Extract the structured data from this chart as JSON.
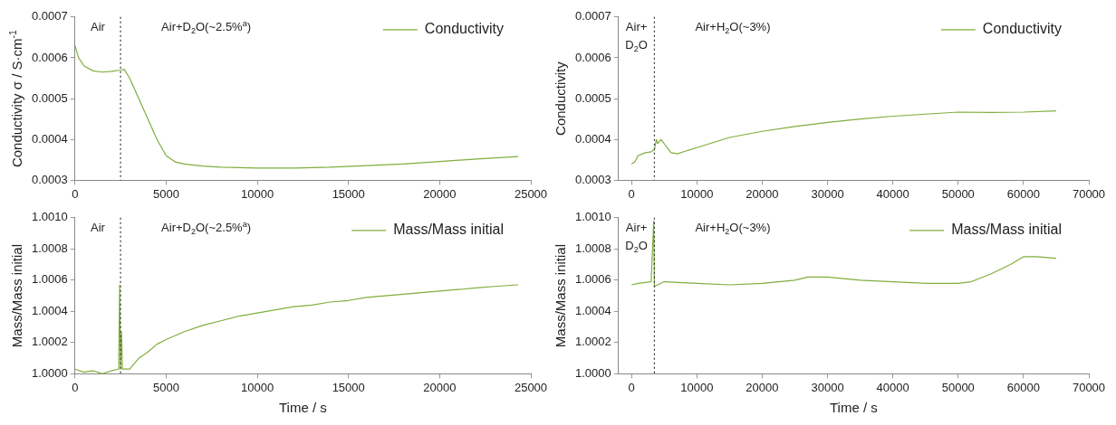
{
  "chart_data": [
    {
      "type": "line",
      "ylabel": "Conductivity σ / S·cm$^{-1}$",
      "xlim": [
        0,
        25000
      ],
      "xticks": [
        0,
        5000,
        10000,
        15000,
        20000,
        25000
      ],
      "ylim": [
        0.0003,
        0.0007
      ],
      "yticks": [
        0.0003,
        0.0004,
        0.0005,
        0.0006,
        0.0007
      ],
      "grid": false,
      "legend": "top right",
      "marker": "none",
      "annotations": [
        "Air",
        "Air+D$_{2}$O(~2.5%$^{a}$)"
      ],
      "ref_lines": [
        {
          "axis": "x",
          "value": 2500,
          "color": "#333333",
          "line_style": "dotted"
        }
      ],
      "series": [
        {
          "name": "Conductivity",
          "color": "#7fae3c",
          "x": [
            0,
            200,
            500,
            1000,
            1500,
            2000,
            2500,
            2700,
            3000,
            3500,
            4000,
            4500,
            5000,
            5500,
            6000,
            7000,
            8000,
            10000,
            12000,
            14000,
            16000,
            18000,
            20000,
            22000,
            24300
          ],
          "values": [
            0.00063,
            0.0006,
            0.00058,
            0.000568,
            0.000565,
            0.000567,
            0.00057,
            0.000572,
            0.00055,
            0.0005,
            0.00045,
            0.0004,
            0.00036,
            0.000345,
            0.00034,
            0.000335,
            0.000332,
            0.00033,
            0.00033,
            0.000332,
            0.000336,
            0.00034,
            0.000346,
            0.000352,
            0.000358
          ]
        }
      ]
    },
    {
      "type": "line",
      "xlabel": "Time / s",
      "ylabel": "Mass/Mass initial",
      "xlim": [
        0,
        25000
      ],
      "xticks": [
        0,
        5000,
        10000,
        15000,
        20000,
        25000
      ],
      "ylim": [
        1,
        1.001
      ],
      "yticks": [
        {
          "value": 1,
          "label": "1.0000"
        },
        {
          "value": 1.0002,
          "label": "1.0002"
        },
        {
          "value": 1.0004,
          "label": "1.0004"
        },
        {
          "value": 1.0006,
          "label": "1.0006"
        },
        {
          "value": 1.0008,
          "label": "1.0008"
        },
        {
          "value": 1.001,
          "label": "1.0010"
        }
      ],
      "grid": false,
      "legend": "top right",
      "marker": "none",
      "annotations": [
        "Air",
        "Air+D$_{2}$O(~2.5%$^{a}$)"
      ],
      "ref_lines": [
        {
          "axis": "x",
          "value": 2500,
          "color": "#333333",
          "line_style": "dotted"
        }
      ],
      "series": [
        {
          "name": "Mass/Mass initial",
          "color": "#7fae3c",
          "x": [
            0,
            500,
            1000,
            1500,
            2000,
            2400,
            2450,
            2500,
            2550,
            2600,
            3000,
            3500,
            4000,
            4500,
            5000,
            6000,
            7000,
            8000,
            9000,
            10000,
            11000,
            12000,
            13000,
            14000,
            15000,
            16000,
            17000,
            18000,
            19000,
            20000,
            21000,
            22000,
            23000,
            24300
          ],
          "values": [
            1.00003,
            1.00001,
            1.00002,
            1,
            1.00002,
            1.00003,
            1.00057,
            1.00003,
            1.00027,
            1.00003,
            1.00003,
            1.0001,
            1.00014,
            1.00019,
            1.00022,
            1.00027,
            1.00031,
            1.00034,
            1.00037,
            1.00039,
            1.00041,
            1.00043,
            1.00044,
            1.00046,
            1.00047,
            1.00049,
            1.0005,
            1.00051,
            1.00052,
            1.00053,
            1.00054,
            1.00055,
            1.00056,
            1.00057
          ]
        }
      ]
    },
    {
      "type": "line",
      "ylabel": "Conductivity",
      "xlim": [
        -2000,
        70000
      ],
      "xticks": [
        0,
        10000,
        20000,
        30000,
        40000,
        50000,
        60000,
        70000
      ],
      "ylim": [
        0.0003,
        0.0007
      ],
      "yticks": [
        0.0003,
        0.0004,
        0.0005,
        0.0006,
        0.0007
      ],
      "grid": false,
      "legend": "top right",
      "marker": "none",
      "annotations": [
        "Air+\nD$_{2}$O",
        "Air+H$_{2}$O(~3%)"
      ],
      "ref_lines": [
        {
          "axis": "x",
          "value": 3500,
          "color": "#333333",
          "line_style": "dotted"
        }
      ],
      "series": [
        {
          "name": "Conductivity",
          "color": "#7fae3c",
          "x": [
            0,
            500,
            1000,
            2000,
            3000,
            3500,
            3800,
            4000,
            4500,
            5000,
            6000,
            7000,
            8000,
            10000,
            12000,
            15000,
            20000,
            25000,
            30000,
            35000,
            40000,
            45000,
            50000,
            55000,
            60000,
            65000
          ],
          "values": [
            0.00034,
            0.000345,
            0.00036,
            0.000367,
            0.00037,
            0.000375,
            0.0004,
            0.00039,
            0.0004,
            0.00039,
            0.000368,
            0.000365,
            0.00037,
            0.00038,
            0.00039,
            0.000405,
            0.00042,
            0.000432,
            0.000442,
            0.00045,
            0.000457,
            0.000462,
            0.000467,
            0.000466,
            0.000467,
            0.00047
          ]
        }
      ]
    },
    {
      "type": "line",
      "xlabel": "Time / s",
      "ylabel": "Mass/Mass initial",
      "xlim": [
        -2000,
        70000
      ],
      "xticks": [
        0,
        10000,
        20000,
        30000,
        40000,
        50000,
        60000,
        70000
      ],
      "ylim": [
        1,
        1.001
      ],
      "yticks": [
        {
          "value": 1,
          "label": "1.0000"
        },
        {
          "value": 1.0002,
          "label": "1.0002"
        },
        {
          "value": 1.0004,
          "label": "1.0004"
        },
        {
          "value": 1.0006,
          "label": "1.0006"
        },
        {
          "value": 1.0008,
          "label": "1.0008"
        },
        {
          "value": 1.001,
          "label": "1.0010"
        }
      ],
      "grid": false,
      "legend": "top right",
      "marker": "none",
      "annotations": [
        "Air+\nD$_{2}$O",
        "Air+H$_{2}$O(~3%)"
      ],
      "ref_lines": [
        {
          "axis": "x",
          "value": 3500,
          "color": "#333333",
          "line_style": "dotted"
        }
      ],
      "series": [
        {
          "name": "Mass/Mass initial",
          "color": "#7fae3c",
          "x": [
            0,
            1000,
            3000,
            3400,
            3500,
            5000,
            10000,
            15000,
            20000,
            25000,
            27000,
            30000,
            35000,
            40000,
            45000,
            50000,
            52000,
            55000,
            58000,
            60000,
            62000,
            65000
          ],
          "values": [
            1.00057,
            1.00058,
            1.00059,
            1.00098,
            1.00056,
            1.00059,
            1.00058,
            1.00057,
            1.00058,
            1.0006,
            1.00062,
            1.00062,
            1.0006,
            1.00059,
            1.00058,
            1.00058,
            1.00059,
            1.00064,
            1.0007,
            1.00075,
            1.00075,
            1.00074
          ]
        }
      ]
    }
  ]
}
